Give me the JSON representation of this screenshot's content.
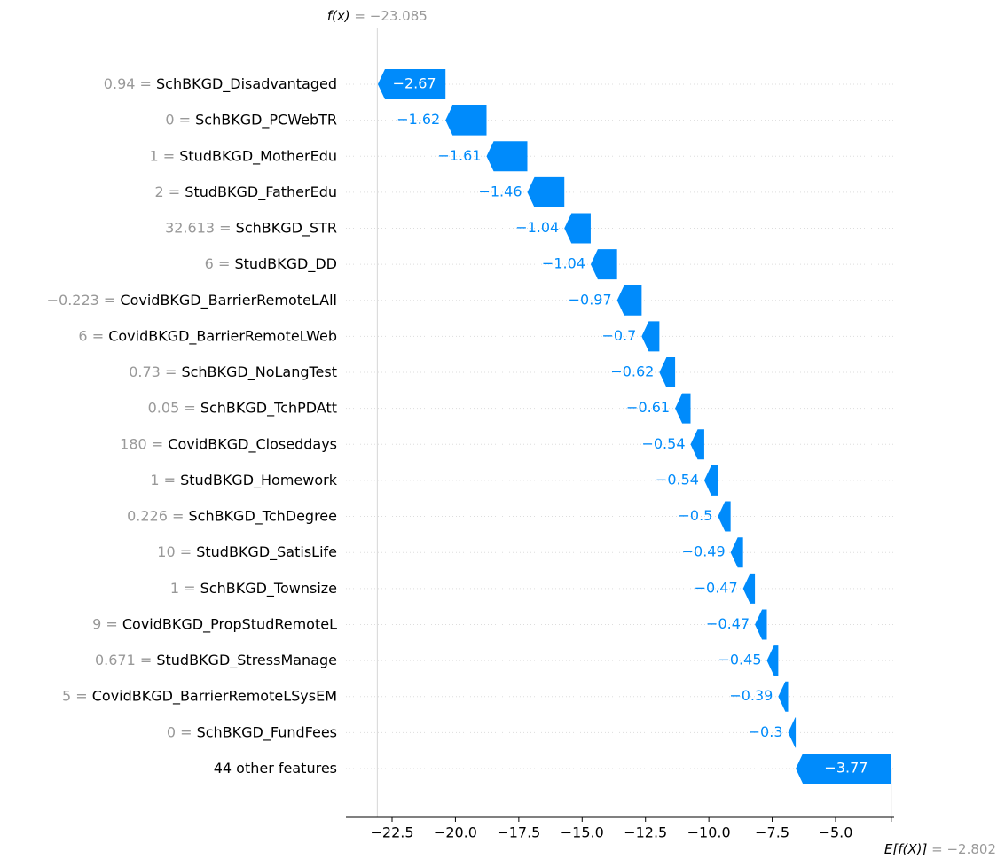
{
  "chart_data": {
    "type": "waterfall",
    "categories": [
      "SchBKGD_Disadvantaged",
      "SchBKGD_PCWebTR",
      "StudBKGD_MotherEdu",
      "StudBKGD_FatherEdu",
      "SchBKGD_STR",
      "StudBKGD_DD",
      "CovidBKGD_BarrierRemoteLAll",
      "CovidBKGD_BarrierRemoteLWeb",
      "SchBKGD_NoLangTest",
      "SchBKGD_TchPDAtt",
      "CovidBKGD_Closeddays",
      "StudBKGD_Homework",
      "SchBKGD_TchDegree",
      "StudBKGD_SatisLife",
      "SchBKGD_Townsize",
      "CovidBKGD_PropStudRemoteL",
      "StudBKGD_StressManage",
      "CovidBKGD_BarrierRemoteLSysEM",
      "SchBKGD_FundFees",
      "44 other features"
    ],
    "feature_values": [
      "0.94 = ",
      "0 = ",
      "1 = ",
      "2 = ",
      "32.613 = ",
      "6 = ",
      "−0.223 = ",
      "6 = ",
      "0.73 = ",
      "0.05 = ",
      "180 = ",
      "1 = ",
      "0.226 = ",
      "10 = ",
      "1 = ",
      "9 = ",
      "0.671 = ",
      "5 = ",
      "0 = ",
      null
    ],
    "values": [
      -2.67,
      -1.62,
      -1.61,
      -1.46,
      -1.04,
      -1.04,
      -0.97,
      -0.7,
      -0.62,
      -0.61,
      -0.54,
      -0.54,
      -0.5,
      -0.49,
      -0.47,
      -0.47,
      -0.45,
      -0.39,
      -0.3,
      -3.77
    ],
    "value_labels": [
      "−2.67",
      "−1.62",
      "−1.61",
      "−1.46",
      "−1.04",
      "−1.04",
      "−0.97",
      "−0.7",
      "−0.62",
      "−0.61",
      "−0.54",
      "−0.54",
      "−0.5",
      "−0.49",
      "−0.47",
      "−0.47",
      "−0.45",
      "−0.39",
      "−0.3",
      "−3.77"
    ],
    "color": "#008bfb",
    "fx": {
      "label": "f(x)",
      "value": -23.085,
      "value_label": " = −23.085"
    },
    "base": {
      "label": "E[f(X)]",
      "value": -2.802,
      "value_label": " = −2.802"
    },
    "xlim": [
      -24.32,
      -2.69
    ],
    "xticks": [
      {
        "value": -22.5,
        "label": "−22.5"
      },
      {
        "value": -20,
        "label": "−20.0"
      },
      {
        "value": -17.5,
        "label": "−17.5"
      },
      {
        "value": -15,
        "label": "−15.0"
      },
      {
        "value": -12.5,
        "label": "−12.5"
      },
      {
        "value": -10,
        "label": "−10.0"
      },
      {
        "value": -7.5,
        "label": "−7.5"
      },
      {
        "value": -5,
        "label": "−5.0"
      }
    ]
  }
}
